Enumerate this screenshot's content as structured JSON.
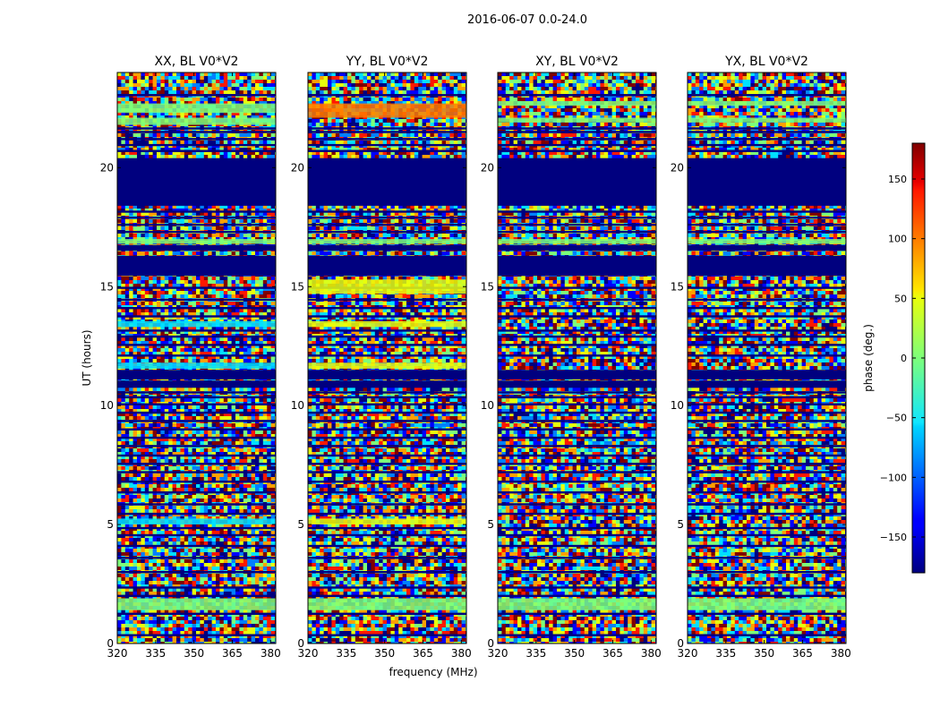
{
  "figure": {
    "suptitle": "2016-06-07 0.0-24.0",
    "ylabel": "UT (hours)",
    "xlabel": "frequency (MHz)"
  },
  "colors": {
    "dark_blue": "#00007f",
    "green": "#7dff7a",
    "cyan": "#00e0ff",
    "yellow": "#e8ff0c",
    "orange": "#ff7a00",
    "red": "#ff1800",
    "blue": "#0000ff"
  },
  "chart_data": {
    "type": "heatmap",
    "x_range": [
      320,
      382
    ],
    "y_range": [
      0,
      24
    ],
    "x_ticks": [
      320,
      335,
      350,
      365,
      380
    ],
    "y_ticks": [
      0,
      5,
      10,
      15,
      20
    ],
    "panels": [
      {
        "title": "XX, BL V0*V2",
        "bands": [
          {
            "y0": 18.4,
            "y1": 20.4,
            "c": "dark_blue"
          },
          {
            "y0": 15.45,
            "y1": 16.3,
            "c": "dark_blue"
          },
          {
            "y0": 16.5,
            "y1": 16.75,
            "c": "dark_blue"
          },
          {
            "y0": 11.1,
            "y1": 11.5,
            "c": "dark_blue"
          },
          {
            "y0": 10.75,
            "y1": 11.05,
            "c": "dark_blue"
          },
          {
            "y0": 1.4,
            "y1": 1.6,
            "c": "green"
          },
          {
            "y0": 1.6,
            "y1": 1.9,
            "c": "green"
          },
          {
            "y0": 22.3,
            "y1": 22.7,
            "c": "green"
          },
          {
            "y0": 21.8,
            "y1": 22.1,
            "c": "green"
          },
          {
            "y0": 13.3,
            "y1": 13.55,
            "c": "cyan"
          },
          {
            "y0": 11.55,
            "y1": 11.8,
            "c": "cyan"
          },
          {
            "y0": 5.0,
            "y1": 5.25,
            "c": "cyan"
          },
          {
            "y0": 16.8,
            "y1": 17.0,
            "c": "green"
          }
        ]
      },
      {
        "title": "YY, BL V0*V2",
        "bands": [
          {
            "y0": 18.4,
            "y1": 20.4,
            "c": "dark_blue"
          },
          {
            "y0": 15.45,
            "y1": 16.3,
            "c": "dark_blue"
          },
          {
            "y0": 16.5,
            "y1": 16.75,
            "c": "dark_blue"
          },
          {
            "y0": 11.1,
            "y1": 11.5,
            "c": "dark_blue"
          },
          {
            "y0": 10.75,
            "y1": 11.05,
            "c": "dark_blue"
          },
          {
            "y0": 1.4,
            "y1": 1.6,
            "c": "green"
          },
          {
            "y0": 1.6,
            "y1": 1.9,
            "c": "green"
          },
          {
            "y0": 22.1,
            "y1": 22.7,
            "c": "orange"
          },
          {
            "y0": 13.3,
            "y1": 13.55,
            "c": "yellow"
          },
          {
            "y0": 11.55,
            "y1": 11.8,
            "c": "yellow"
          },
          {
            "y0": 5.0,
            "y1": 5.25,
            "c": "yellow"
          },
          {
            "y0": 16.8,
            "y1": 17.0,
            "c": "green"
          },
          {
            "y0": 14.7,
            "y1": 15.3,
            "c": "yellow"
          }
        ]
      },
      {
        "title": "XY, BL V0*V2",
        "bands": [
          {
            "y0": 18.4,
            "y1": 20.4,
            "c": "dark_blue"
          },
          {
            "y0": 15.45,
            "y1": 16.3,
            "c": "dark_blue"
          },
          {
            "y0": 16.5,
            "y1": 16.75,
            "c": "dark_blue"
          },
          {
            "y0": 11.1,
            "y1": 11.5,
            "c": "dark_blue"
          },
          {
            "y0": 10.75,
            "y1": 11.05,
            "c": "dark_blue"
          },
          {
            "y0": 1.4,
            "y1": 1.6,
            "c": "green"
          },
          {
            "y0": 1.6,
            "y1": 1.9,
            "c": "green"
          },
          {
            "y0": 22.6,
            "y1": 22.8,
            "c": "green"
          },
          {
            "y0": 21.9,
            "y1": 22.1,
            "c": "green"
          },
          {
            "y0": 16.8,
            "y1": 17.0,
            "c": "green"
          }
        ]
      },
      {
        "title": "YX, BL V0*V2",
        "bands": [
          {
            "y0": 18.4,
            "y1": 20.4,
            "c": "dark_blue"
          },
          {
            "y0": 15.45,
            "y1": 16.3,
            "c": "dark_blue"
          },
          {
            "y0": 16.5,
            "y1": 16.75,
            "c": "dark_blue"
          },
          {
            "y0": 11.1,
            "y1": 11.5,
            "c": "dark_blue"
          },
          {
            "y0": 10.75,
            "y1": 11.05,
            "c": "dark_blue"
          },
          {
            "y0": 1.4,
            "y1": 1.6,
            "c": "green"
          },
          {
            "y0": 1.6,
            "y1": 1.9,
            "c": "green"
          },
          {
            "y0": 22.6,
            "y1": 22.8,
            "c": "green"
          },
          {
            "y0": 21.9,
            "y1": 22.1,
            "c": "green"
          },
          {
            "y0": 16.8,
            "y1": 17.0,
            "c": "green"
          }
        ]
      }
    ],
    "thin_dark_lines": [
      0.35,
      1.25,
      2.0,
      2.35,
      3.0,
      3.6,
      4.1,
      4.55,
      4.85,
      5.45,
      5.85,
      6.35,
      6.8,
      7.2,
      7.55,
      7.9,
      8.3,
      8.65,
      9.0,
      9.35,
      9.7,
      10.05,
      10.35,
      10.55,
      12.1,
      12.55,
      12.9,
      13.15,
      13.75,
      14.1,
      14.45,
      14.95,
      17.3,
      17.6,
      17.9,
      18.15,
      20.7,
      20.95,
      21.2,
      21.5,
      21.65,
      23.05
    ],
    "colorbar": {
      "label": "phase (deg.)",
      "range": [
        -180,
        180
      ],
      "ticks": [
        -150,
        -100,
        -50,
        0,
        50,
        100,
        150
      ],
      "tick_labels": [
        "−150",
        "−100",
        "−50",
        "0",
        "50",
        "100",
        "150"
      ]
    }
  }
}
